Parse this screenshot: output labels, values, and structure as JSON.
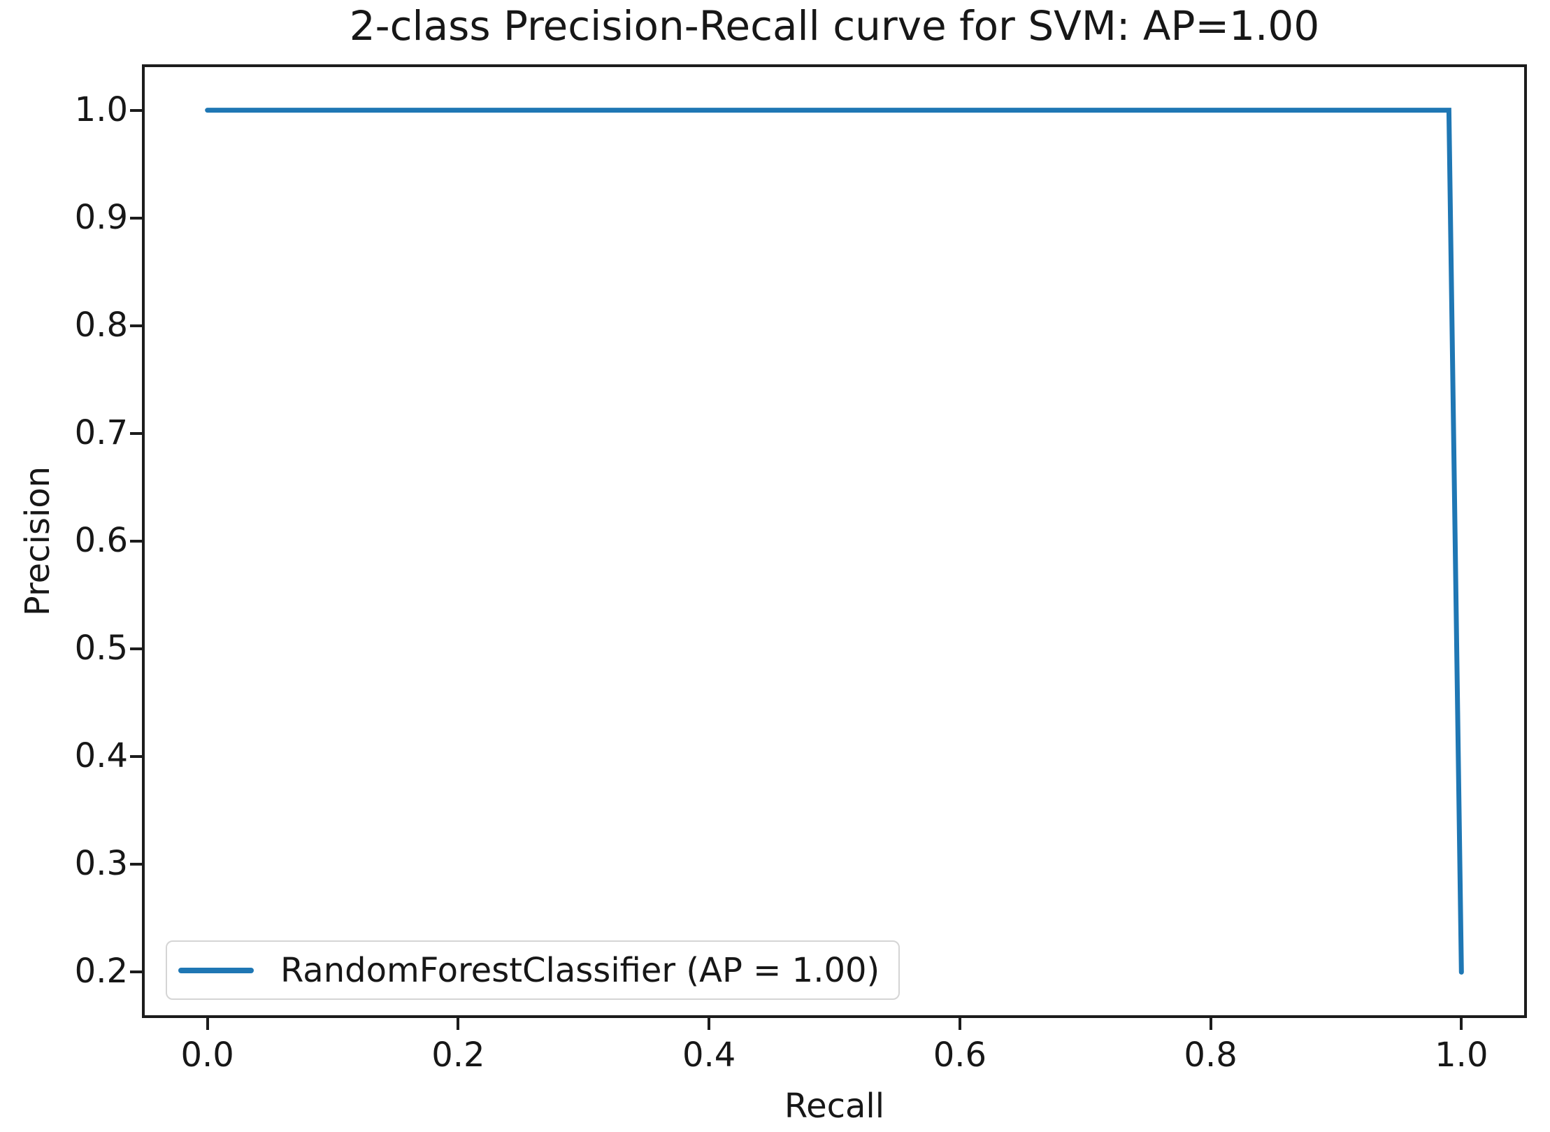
{
  "figure": {
    "title": "2-class Precision-Recall curve for SVM: AP=1.00",
    "xlabel": "Recall",
    "ylabel": "Precision"
  },
  "legend": {
    "position": "lower left",
    "entries": [
      {
        "label": "RandomForestClassifier (AP = 1.00)",
        "color": "#1f77b4"
      }
    ]
  },
  "chart_data": {
    "type": "line",
    "title": "2-class Precision-Recall curve for SVM: AP=1.00",
    "xlabel": "Recall",
    "ylabel": "Precision",
    "xlim": [
      -0.05,
      1.05
    ],
    "ylim": [
      0.16,
      1.04
    ],
    "xticks": [
      0.0,
      0.2,
      0.4,
      0.6,
      0.8,
      1.0
    ],
    "yticks": [
      0.2,
      0.3,
      0.4,
      0.5,
      0.6,
      0.7,
      0.8,
      0.9,
      1.0
    ],
    "tick_decimals": 1,
    "grid": false,
    "legend_position": "lower left",
    "series": [
      {
        "name": "RandomForestClassifier (AP = 1.00)",
        "color": "#1f77b4",
        "line_width": 7,
        "x": [
          0.0,
          0.99,
          1.0
        ],
        "y": [
          1.0,
          1.0,
          0.2
        ]
      }
    ]
  },
  "colors": {
    "line": "#1f77b4",
    "axis": "#1c1c1c",
    "text": "#171717",
    "background": "#ffffff",
    "legend_border": "#d5d5d5"
  }
}
